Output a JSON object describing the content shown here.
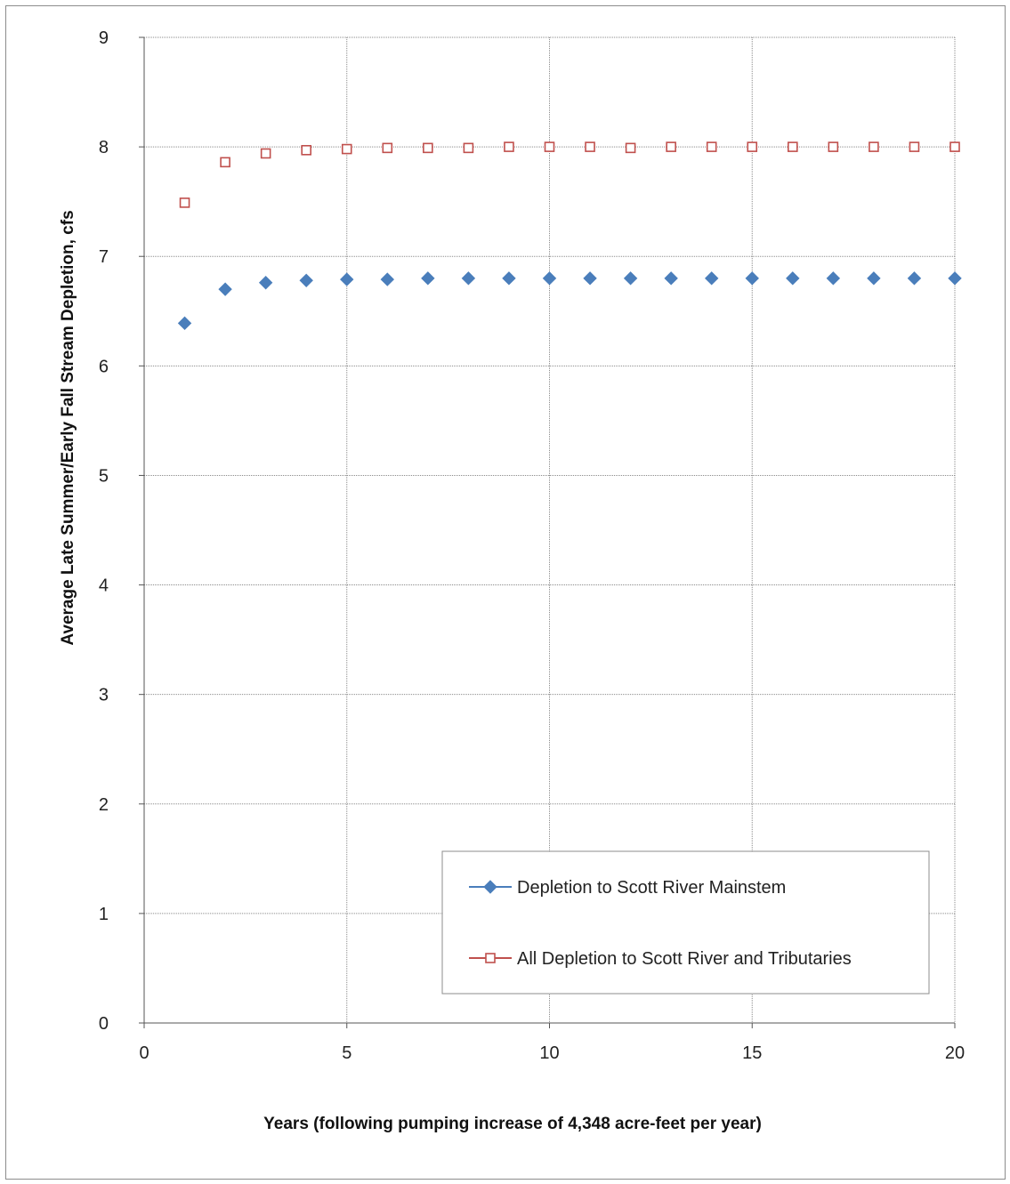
{
  "chart_data": {
    "type": "scatter",
    "title": "",
    "xlabel": "Years  (following  pumping increase of 4,348 acre-feet per year)",
    "ylabel": "Average Late Summer/Early Fall Stream Depletion, cfs",
    "xlim": [
      0,
      20
    ],
    "ylim": [
      0,
      9
    ],
    "x_ticks": [
      0,
      5,
      10,
      15,
      20
    ],
    "y_ticks": [
      0,
      1,
      2,
      3,
      4,
      5,
      6,
      7,
      8,
      9
    ],
    "grid": true,
    "legend_position": "bottom-right",
    "x": [
      1,
      2,
      3,
      4,
      5,
      6,
      7,
      8,
      9,
      10,
      11,
      12,
      13,
      14,
      15,
      16,
      17,
      18,
      19,
      20
    ],
    "series": [
      {
        "name": "Depletion to Scott River Mainstem",
        "marker": "filled-diamond",
        "color": "#4a7ebb",
        "values": [
          6.39,
          6.7,
          6.76,
          6.78,
          6.79,
          6.79,
          6.8,
          6.8,
          6.8,
          6.8,
          6.8,
          6.8,
          6.8,
          6.8,
          6.8,
          6.8,
          6.8,
          6.8,
          6.8,
          6.8
        ]
      },
      {
        "name": "All Depletion to Scott River and Tributaries",
        "marker": "open-square",
        "color": "#c0504d",
        "values": [
          7.49,
          7.86,
          7.94,
          7.97,
          7.98,
          7.99,
          7.99,
          7.99,
          8.0,
          8.0,
          8.0,
          7.99,
          8.0,
          8.0,
          8.0,
          8.0,
          8.0,
          8.0,
          8.0,
          8.0
        ]
      }
    ]
  }
}
